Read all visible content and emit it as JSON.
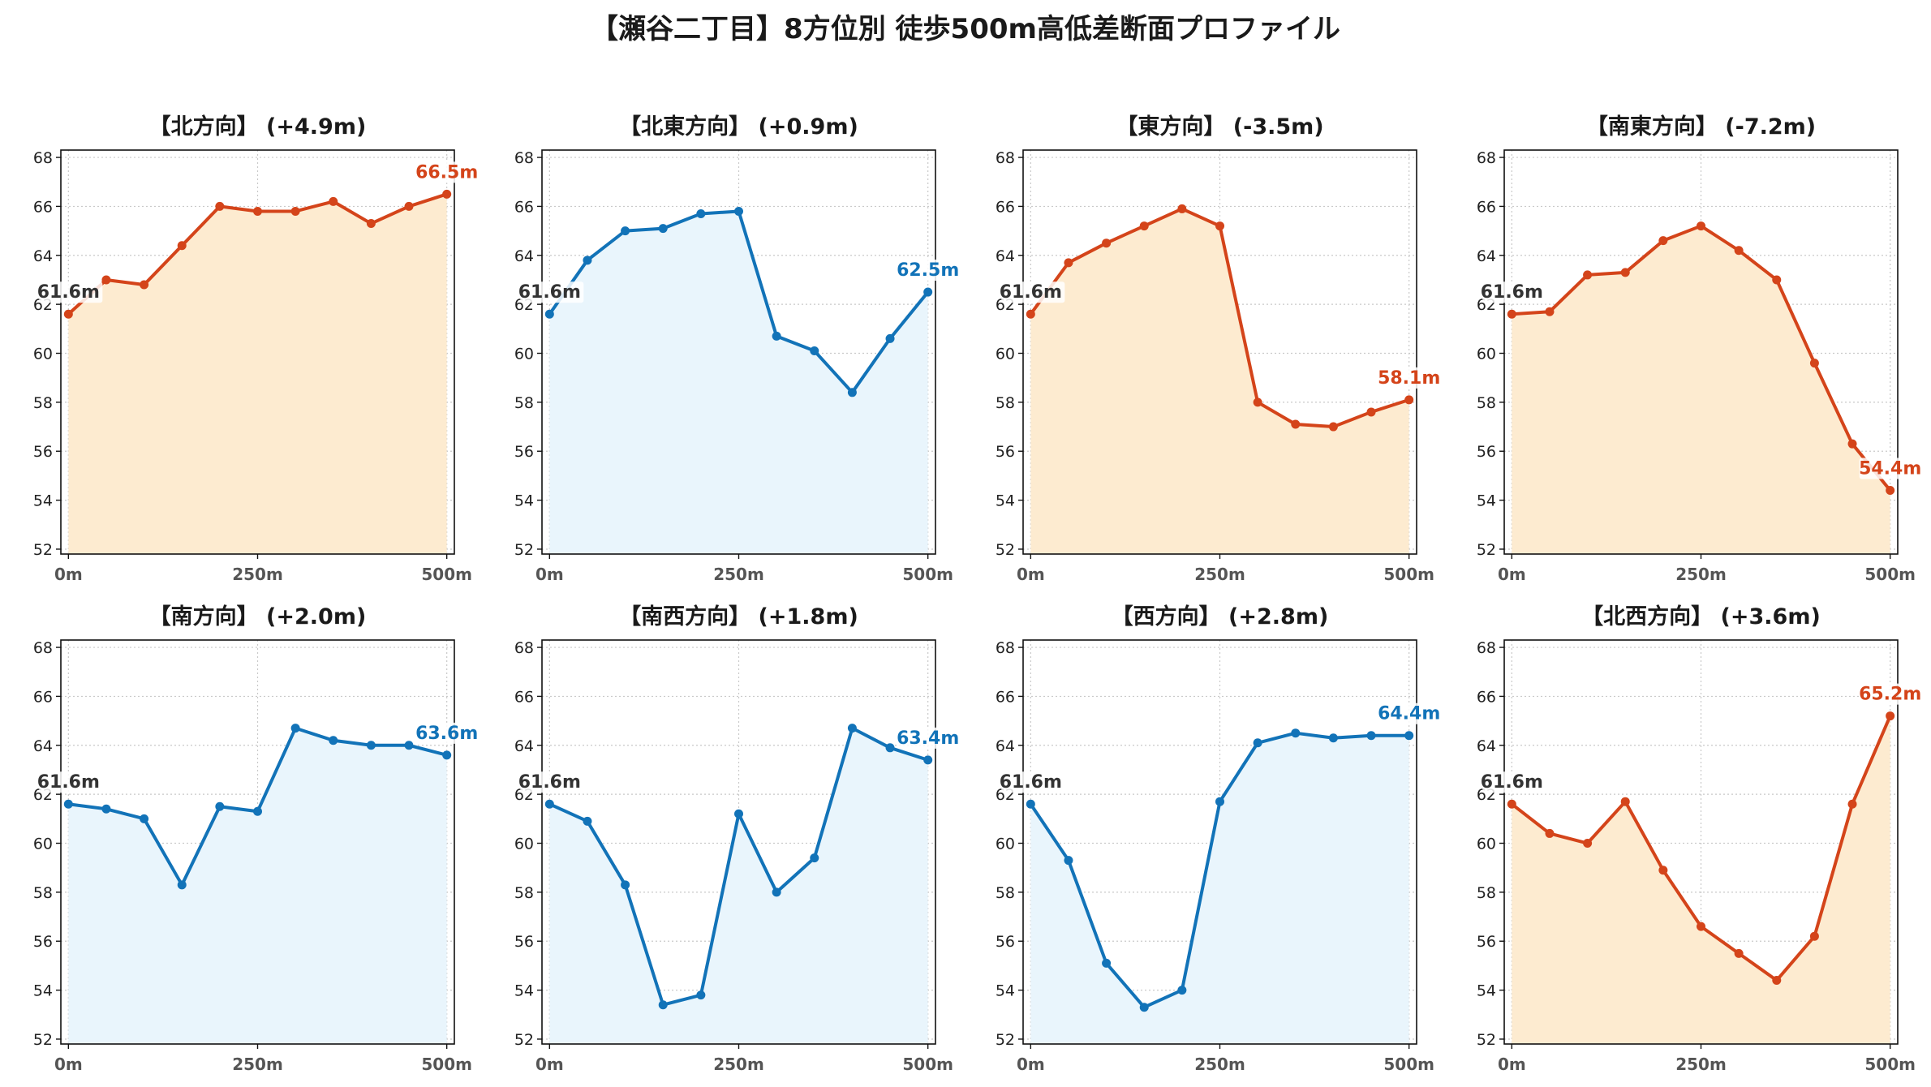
{
  "title": "【瀬谷二丁目】8方位別 徒歩500m高低差断面プロファイル",
  "colors": {
    "up_line": "#d4441a",
    "up_fill": "#fdebd0",
    "down_line": "#1273b8",
    "down_fill": "#e9f5fc",
    "start_label": "#333333"
  },
  "chart_data": [
    {
      "type": "area",
      "title": "【北方向】 (+4.9m)",
      "trend": "up",
      "x": [
        0,
        50,
        100,
        150,
        200,
        250,
        300,
        350,
        400,
        450,
        500
      ],
      "values": [
        61.6,
        63.0,
        62.8,
        64.4,
        66.0,
        65.8,
        65.8,
        66.2,
        65.3,
        66.0,
        66.5
      ],
      "start_label": "61.6m",
      "end_label": "66.5m"
    },
    {
      "type": "area",
      "title": "【北東方向】 (+0.9m)",
      "trend": "down",
      "x": [
        0,
        50,
        100,
        150,
        200,
        250,
        300,
        350,
        400,
        450,
        500
      ],
      "values": [
        61.6,
        63.8,
        65.0,
        65.1,
        65.7,
        65.8,
        60.7,
        60.1,
        58.4,
        60.6,
        62.5
      ],
      "start_label": "61.6m",
      "end_label": "62.5m"
    },
    {
      "type": "area",
      "title": "【東方向】 (-3.5m)",
      "trend": "up",
      "x": [
        0,
        50,
        100,
        150,
        200,
        250,
        300,
        350,
        400,
        450,
        500
      ],
      "values": [
        61.6,
        63.7,
        64.5,
        65.2,
        65.9,
        65.2,
        58.0,
        57.1,
        57.0,
        57.6,
        58.1
      ],
      "start_label": "61.6m",
      "end_label": "58.1m"
    },
    {
      "type": "area",
      "title": "【南東方向】 (-7.2m)",
      "trend": "up",
      "x": [
        0,
        50,
        100,
        150,
        200,
        250,
        300,
        350,
        400,
        450,
        500
      ],
      "values": [
        61.6,
        61.7,
        63.2,
        63.3,
        64.6,
        65.2,
        64.2,
        63.0,
        59.6,
        56.3,
        54.4
      ],
      "start_label": "61.6m",
      "end_label": "54.4m"
    },
    {
      "type": "area",
      "title": "【南方向】 (+2.0m)",
      "trend": "down",
      "x": [
        0,
        50,
        100,
        150,
        200,
        250,
        300,
        350,
        400,
        450,
        500
      ],
      "values": [
        61.6,
        61.4,
        61.0,
        58.3,
        61.5,
        61.3,
        64.7,
        64.2,
        64.0,
        64.0,
        63.6
      ],
      "start_label": "61.6m",
      "end_label": "63.6m"
    },
    {
      "type": "area",
      "title": "【南西方向】 (+1.8m)",
      "trend": "down",
      "x": [
        0,
        50,
        100,
        150,
        200,
        250,
        300,
        350,
        400,
        450,
        500
      ],
      "values": [
        61.6,
        60.9,
        58.3,
        53.4,
        53.8,
        61.2,
        58.0,
        59.4,
        64.7,
        63.9,
        63.4
      ],
      "start_label": "61.6m",
      "end_label": "63.4m"
    },
    {
      "type": "area",
      "title": "【西方向】 (+2.8m)",
      "trend": "down",
      "x": [
        0,
        50,
        100,
        150,
        200,
        250,
        300,
        350,
        400,
        450,
        500
      ],
      "values": [
        61.6,
        59.3,
        55.1,
        53.3,
        54.0,
        61.7,
        64.1,
        64.5,
        64.3,
        64.4,
        64.4
      ],
      "start_label": "61.6m",
      "end_label": "64.4m"
    },
    {
      "type": "area",
      "title": "【北西方向】 (+3.6m)",
      "trend": "up",
      "x": [
        0,
        50,
        100,
        150,
        200,
        250,
        300,
        350,
        400,
        450,
        500
      ],
      "values": [
        61.6,
        60.4,
        60.0,
        61.7,
        58.9,
        56.6,
        55.5,
        54.4,
        56.2,
        61.6,
        65.2
      ],
      "start_label": "61.6m",
      "end_label": "65.2m"
    }
  ],
  "axes": {
    "ylim": [
      51.8,
      68.3
    ],
    "yticks": [
      52,
      54,
      56,
      58,
      60,
      62,
      64,
      66,
      68
    ],
    "xlim": [
      -10,
      510
    ],
    "xticks": [
      0,
      250,
      500
    ],
    "xtick_labels": [
      "0m",
      "250m",
      "500m"
    ],
    "grid": true
  }
}
